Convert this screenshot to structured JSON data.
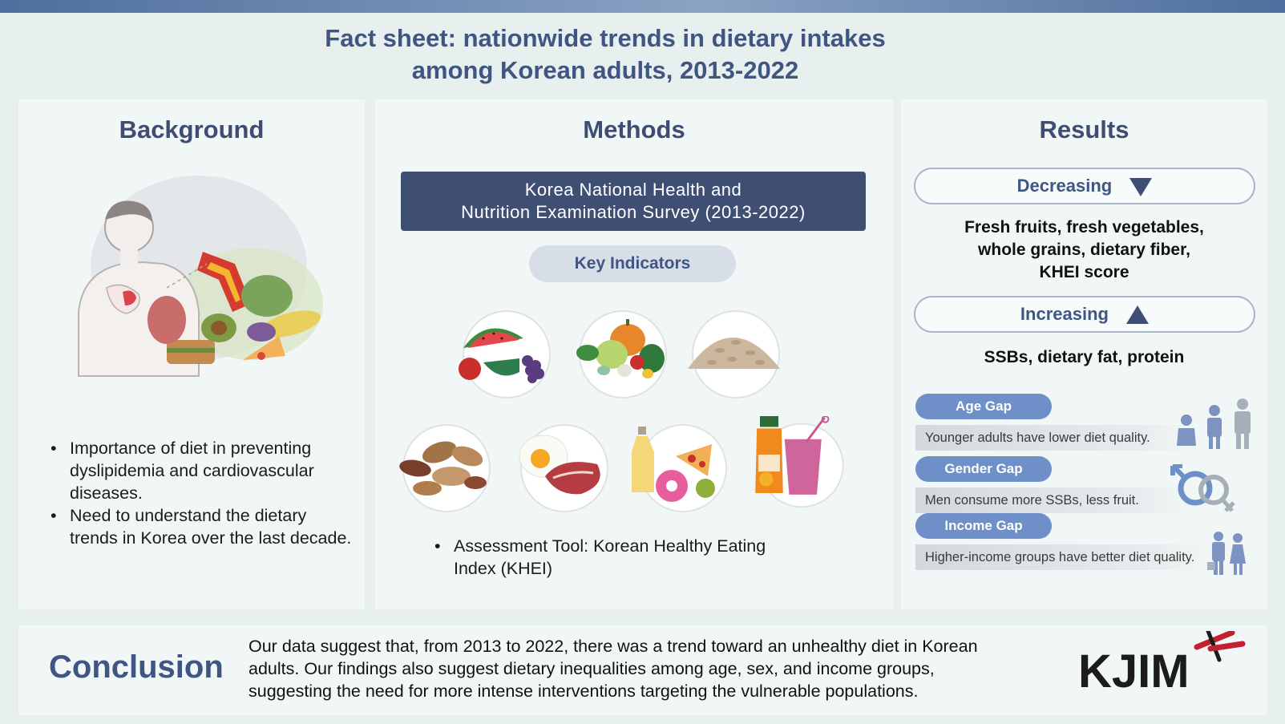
{
  "title_line1": "Fact sheet: nationwide trends in dietary intakes",
  "title_line2": "among Korean adults, 2013-2022",
  "background": {
    "heading": "Background",
    "bullets": [
      "Importance of diet in preventing dyslipidemia and cardiovascular diseases.",
      "Need to understand the dietary trends in Korea over the last decade."
    ]
  },
  "methods": {
    "heading": "Methods",
    "survey_line1": "Korea National Health and",
    "survey_line2": "Nutrition Examination Survey (2013-2022)",
    "key_indicators": "Key Indicators",
    "food_icons": [
      "fruits-icon",
      "vegetables-icon",
      "whole-grains-icon",
      "nuts-icon",
      "meat-eggs-icon",
      "fat-sugar-icon",
      "sweetened-beverage-icon"
    ],
    "assessment_line1": "Assessment Tool: Korean Healthy Eating",
    "assessment_line2": "Index (KHEI)"
  },
  "results": {
    "heading": "Results",
    "decreasing_label": "Decreasing",
    "decreasing_line1": "Fresh fruits, fresh vegetables,",
    "decreasing_line2": "whole grains, dietary fiber,",
    "decreasing_line3": "KHEI score",
    "increasing_label": "Increasing",
    "increasing_text": "SSBs, dietary fat, protein",
    "gaps": [
      {
        "label": "Age Gap",
        "text": "Younger adults have lower diet quality."
      },
      {
        "label": "Gender Gap",
        "text": "Men consume more SSBs, less fruit."
      },
      {
        "label": "Income Gap",
        "text": "Higher-income groups have better diet quality."
      }
    ]
  },
  "conclusion": {
    "heading": "Conclusion",
    "line1": "Our data suggest that, from 2013 to 2022, there was a trend toward an unhealthy diet in Korean",
    "line2": "adults. Our findings also suggest dietary inequalities among age, sex, and income groups,",
    "line3": "suggesting the need for more intense interventions targeting the vulnerable populations."
  },
  "logo_text": "KJIM",
  "colors": {
    "navy": "#3e4f73",
    "accent_blue": "#6e8fc7",
    "title": "#3f5682",
    "logo_red": "#c2202f"
  }
}
